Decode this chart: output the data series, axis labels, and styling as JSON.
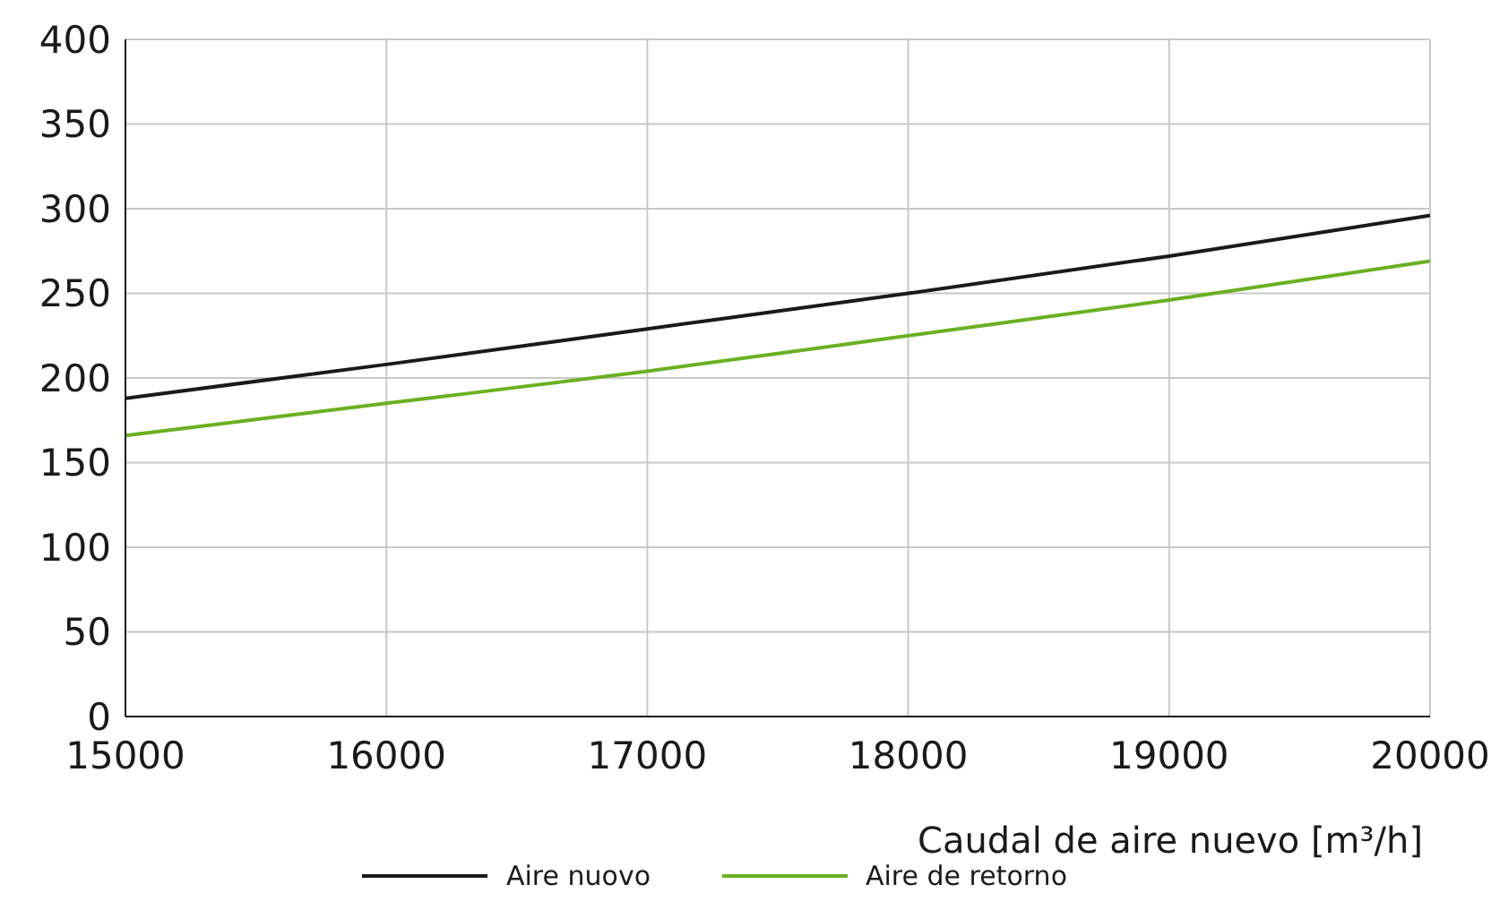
{
  "chart_data": {
    "type": "line",
    "xlabel": "Caudal de aire nuevo [m³/h]",
    "x": [
      15000,
      16000,
      17000,
      18000,
      19000,
      20000
    ],
    "series": [
      {
        "name": "Aire nuovo",
        "color": "#1a1a1a",
        "values": [
          188,
          208,
          229,
          250,
          272,
          296
        ]
      },
      {
        "name": "Aire de retorno",
        "color": "#6ab023",
        "values": [
          166,
          185,
          204,
          225,
          246,
          269
        ]
      }
    ],
    "xlim": [
      15000,
      20000
    ],
    "xticks": [
      15000,
      16000,
      17000,
      18000,
      19000,
      20000
    ],
    "ylim": [
      0,
      400
    ],
    "yticks": [
      0,
      50,
      100,
      150,
      200,
      250,
      300,
      350,
      400
    ],
    "grid": true,
    "legend": "bottom",
    "marker": "none",
    "line_style": "solid"
  }
}
